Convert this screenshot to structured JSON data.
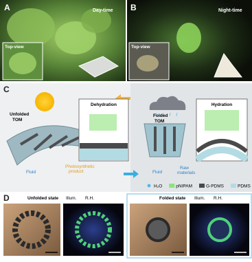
{
  "panel_a": {
    "label": "A",
    "caption": "Day-time",
    "inset": "Top-view"
  },
  "panel_b": {
    "label": "B",
    "caption": "Night-time",
    "inset": "Top-view"
  },
  "panel_c": {
    "label": "C",
    "left_state": [
      "Unfolded",
      "TOM"
    ],
    "right_state": [
      "Folded",
      "TOM"
    ],
    "left_box": "Dehydration",
    "right_box": "Hydration",
    "left_fluid": "Fluid",
    "left_product": [
      "Photosynthetic",
      "product"
    ],
    "right_fluid": "Fluid",
    "right_product": [
      "Raw",
      "materials"
    ],
    "legend": [
      {
        "label": "H₂O",
        "color": "#5ab8e6"
      },
      {
        "label": "pNIPAM",
        "color": "#8ee27c"
      },
      {
        "label": "G-PDMS",
        "color": "#4a4a4a"
      },
      {
        "label": "PDMS",
        "color": "#b3dbe3"
      }
    ]
  },
  "panel_d": {
    "label": "D",
    "left_state": "Unfolded state",
    "left_indicators": [
      "Illum.",
      "R.H."
    ],
    "right_state": "Folded state",
    "right_indicators": [
      "Illum.",
      "R.H."
    ]
  }
}
